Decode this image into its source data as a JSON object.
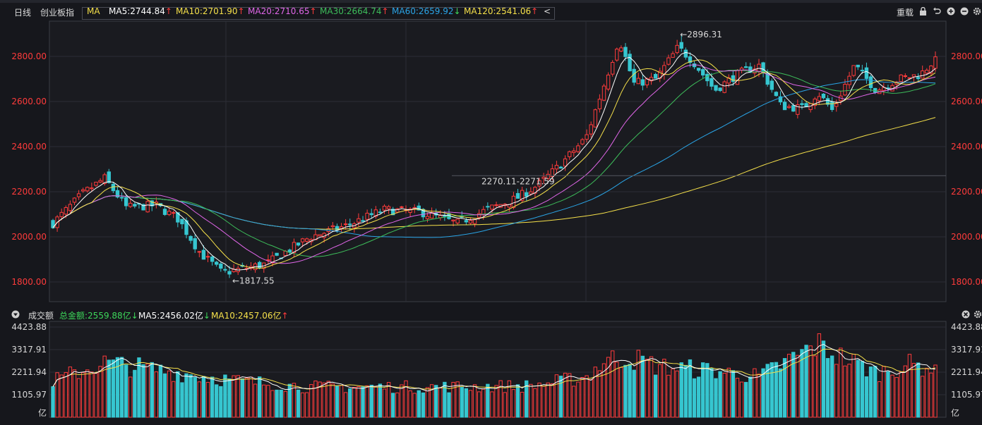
{
  "header": {
    "period_label": "日线",
    "index_name": "创业板指",
    "ma_label": "MA",
    "indicators": [
      {
        "text": "MA5:2744.84",
        "color": "#ffffff",
        "arrow": "↑"
      },
      {
        "text": "MA10:2701.90",
        "color": "#f5e04a",
        "arrow": "↑"
      },
      {
        "text": "MA20:2710.65",
        "color": "#e066e8",
        "arrow": "↑"
      },
      {
        "text": "MA30:2664.74",
        "color": "#3dbd5a",
        "arrow": "↑"
      },
      {
        "text": "MA60:2659.92",
        "color": "#2aa4e6",
        "arrow": "↓"
      },
      {
        "text": "MA120:2541.06",
        "color": "#f5e04a",
        "arrow": "↑"
      }
    ],
    "collapse_glyph": "<",
    "restore_label": "重载"
  },
  "volume_header": {
    "label": "成交额",
    "total": "总金额:2559.88亿",
    "total_arrow": "↓",
    "ma5": "MA5:2456.02亿",
    "ma5_arrow": "↓",
    "ma10": "MA10:2457.06亿",
    "ma10_arrow": "↑"
  },
  "colors": {
    "up": "#ff3b3b",
    "down": "#36c6d0",
    "ma5": "#ffffff",
    "ma10": "#f5e04a",
    "ma20": "#e066e8",
    "ma30": "#3dbd5a",
    "ma60": "#2aa4e6",
    "ma120": "#f5e04a",
    "axis_text": "#ff3b3b",
    "grid": "#2c2e36"
  },
  "chart_data": [
    {
      "type": "candlestick",
      "y_ticks": [
        "1800.00",
        "2000.00",
        "2200.00",
        "2400.00",
        "2600.00",
        "2800.00"
      ],
      "y_tick_values": [
        1800,
        2000,
        2200,
        2400,
        2600,
        2800
      ],
      "ylim": [
        1710,
        2940
      ],
      "annotations": {
        "high": {
          "text": "←2896.31",
          "value": 2896.31
        },
        "low": {
          "text": "←1817.55",
          "value": 1817.55
        },
        "range": {
          "text": "2270.11-2271.59",
          "value": 2271
        }
      },
      "last_close": 2798,
      "candle_count": 206
    },
    {
      "type": "bar",
      "name": "成交额",
      "y_ticks": [
        "1105.97",
        "2211.94",
        "3317.91",
        "4423.88"
      ],
      "y_tick_values": [
        1105.97,
        2211.94,
        3317.91,
        4423.88
      ],
      "unit": "亿",
      "ylim": [
        0,
        4423.88
      ]
    }
  ]
}
